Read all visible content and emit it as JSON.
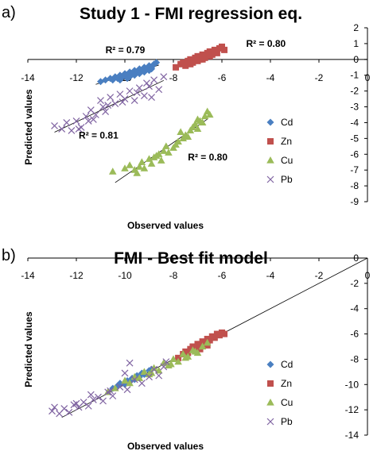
{
  "chart_data": [
    {
      "type": "scatter",
      "panel": "a)",
      "title": "Study 1 - FMI regression eq.",
      "xlabel": "Observed values",
      "ylabel": "Predicted values",
      "xlim": [
        -14,
        0
      ],
      "ylim": [
        -9,
        2
      ],
      "xticks": [
        -14,
        -12,
        -10,
        -8,
        -6,
        -4,
        -2,
        0
      ],
      "yticks": [
        2,
        1,
        0,
        -1,
        -2,
        -3,
        -4,
        -5,
        -6,
        -7,
        -8,
        -9
      ],
      "grid": false,
      "legend": "right",
      "series": [
        {
          "name": "Cd",
          "marker": "diamond",
          "color": "#4a7fc1",
          "x": [
            -11.0,
            -10.8,
            -10.6,
            -10.5,
            -10.4,
            -10.3,
            -10.2,
            -10.1,
            -10.0,
            -9.9,
            -9.8,
            -9.7,
            -9.6,
            -9.5,
            -9.4,
            -9.3,
            -9.2,
            -9.1,
            -9.0,
            -8.9,
            -8.8,
            -8.7,
            -9.9,
            -9.6,
            -9.4,
            -9.2,
            -9.0,
            -8.9,
            -10.2,
            -9.8
          ],
          "y": [
            -1.4,
            -1.3,
            -1.2,
            -1.3,
            -1.1,
            -1.2,
            -1.0,
            -1.1,
            -0.9,
            -1.0,
            -0.8,
            -0.9,
            -0.7,
            -0.8,
            -0.6,
            -0.7,
            -0.5,
            -0.6,
            -0.4,
            -0.5,
            -0.3,
            -0.2,
            -1.2,
            -1.0,
            -0.9,
            -0.8,
            -0.7,
            -0.6,
            -1.3,
            -1.1
          ]
        },
        {
          "name": "Zn",
          "marker": "square",
          "color": "#c0504d",
          "x": [
            -7.9,
            -7.7,
            -7.6,
            -7.5,
            -7.4,
            -7.3,
            -7.2,
            -7.1,
            -7.0,
            -6.9,
            -6.8,
            -6.7,
            -6.6,
            -6.5,
            -6.4,
            -6.3,
            -6.2,
            -6.1,
            -6.0,
            -5.9,
            -7.3,
            -7.0,
            -6.8,
            -6.5,
            -6.3
          ],
          "y": [
            -0.5,
            -0.3,
            -0.2,
            -0.4,
            -0.1,
            0.0,
            -0.2,
            0.1,
            0.2,
            0.0,
            0.3,
            0.1,
            0.4,
            0.5,
            0.3,
            0.6,
            0.4,
            0.7,
            0.8,
            0.6,
            -0.3,
            -0.1,
            0.0,
            0.2,
            0.5
          ]
        },
        {
          "name": "Cu",
          "marker": "triangle",
          "color": "#9bbb59",
          "x": [
            -10.5,
            -10.0,
            -9.8,
            -9.6,
            -9.4,
            -9.3,
            -9.2,
            -9.0,
            -8.9,
            -8.8,
            -8.6,
            -8.5,
            -8.4,
            -8.2,
            -8.0,
            -7.9,
            -7.8,
            -7.6,
            -7.5,
            -7.4,
            -7.3,
            -7.2,
            -7.1,
            -7.0,
            -6.9,
            -6.8,
            -6.7,
            -6.6,
            -6.5,
            -9.5,
            -8.7,
            -8.3,
            -7.7,
            -7.0
          ],
          "y": [
            -7.1,
            -6.9,
            -6.7,
            -7.0,
            -6.8,
            -6.5,
            -6.9,
            -6.3,
            -6.6,
            -6.2,
            -6.0,
            -6.4,
            -5.8,
            -5.9,
            -5.6,
            -5.4,
            -5.2,
            -5.0,
            -4.8,
            -4.9,
            -4.5,
            -4.3,
            -4.1,
            -4.4,
            -3.9,
            -4.0,
            -3.6,
            -3.3,
            -3.5,
            -7.2,
            -6.1,
            -5.5,
            -4.6,
            -3.8
          ]
        },
        {
          "name": "Pb",
          "marker": "x",
          "color": "#8064a2",
          "x": [
            -12.9,
            -12.6,
            -12.4,
            -12.2,
            -12.0,
            -11.8,
            -11.6,
            -11.5,
            -11.4,
            -11.2,
            -11.0,
            -10.9,
            -10.8,
            -10.6,
            -10.4,
            -10.2,
            -10.0,
            -9.8,
            -9.6,
            -9.4,
            -9.2,
            -9.0,
            -8.8,
            -8.6,
            -8.4,
            -11.9,
            -11.3,
            -10.7,
            -10.1,
            -9.5,
            -9.1,
            -8.9
          ],
          "y": [
            -4.2,
            -4.4,
            -4.0,
            -4.5,
            -3.9,
            -4.3,
            -3.6,
            -3.9,
            -3.2,
            -3.5,
            -2.6,
            -3.0,
            -3.3,
            -2.4,
            -2.8,
            -2.2,
            -2.5,
            -2.0,
            -2.6,
            -1.8,
            -2.3,
            -1.7,
            -1.3,
            -1.9,
            -1.1,
            -4.4,
            -3.8,
            -2.9,
            -2.7,
            -2.1,
            -1.5,
            -2.4
          ]
        }
      ],
      "annotations": [
        {
          "text": "R² = 0.79",
          "x": -10.8,
          "y": 0.4
        },
        {
          "text": "R² = 0.80",
          "x": -5.0,
          "y": 0.8
        },
        {
          "text": "R² = 0.81",
          "x": -11.9,
          "y": -5.0
        },
        {
          "text": "R² = 0.80",
          "x": -7.4,
          "y": -6.4
        }
      ]
    },
    {
      "type": "scatter",
      "panel": "b)",
      "title": "FMI - Best fit model",
      "xlabel": "Observed values",
      "ylabel": "Predicted values",
      "xlim": [
        -14,
        0
      ],
      "ylim": [
        -14,
        0
      ],
      "xticks": [
        -14,
        -12,
        -10,
        -8,
        -6,
        -4,
        -2,
        0
      ],
      "yticks": [
        0,
        -2,
        -4,
        -6,
        -8,
        -10,
        -12,
        -14
      ],
      "grid": false,
      "legend": "right",
      "series": [
        {
          "name": "Cd",
          "marker": "diamond",
          "color": "#4a7fc1",
          "x": [
            -10.5,
            -10.3,
            -10.2,
            -10.0,
            -9.9,
            -9.8,
            -9.7,
            -9.6,
            -9.5,
            -9.4,
            -9.3,
            -9.2,
            -9.0,
            -8.9
          ],
          "y": [
            -10.3,
            -10.1,
            -9.9,
            -10.0,
            -9.7,
            -9.8,
            -9.5,
            -9.6,
            -9.3,
            -9.4,
            -9.1,
            -9.2,
            -8.9,
            -8.8
          ]
        },
        {
          "name": "Zn",
          "marker": "square",
          "color": "#c0504d",
          "x": [
            -7.8,
            -7.6,
            -7.5,
            -7.4,
            -7.3,
            -7.2,
            -7.1,
            -7.0,
            -6.9,
            -6.8,
            -6.7,
            -6.6,
            -6.5,
            -6.4,
            -6.3,
            -6.2,
            -6.1,
            -6.0,
            -5.9,
            -6.9,
            -6.6
          ],
          "y": [
            -7.9,
            -7.6,
            -7.4,
            -7.5,
            -7.2,
            -7.0,
            -7.1,
            -6.8,
            -6.9,
            -6.6,
            -6.7,
            -6.4,
            -6.5,
            -6.2,
            -6.3,
            -6.0,
            -6.1,
            -5.9,
            -6.0,
            -7.2,
            -6.9
          ]
        },
        {
          "name": "Cu",
          "marker": "triangle",
          "color": "#9bbb59",
          "x": [
            -10.7,
            -10.4,
            -10.0,
            -9.8,
            -9.6,
            -9.4,
            -9.2,
            -9.0,
            -8.8,
            -8.6,
            -8.4,
            -8.2,
            -8.0,
            -7.8,
            -7.6,
            -7.4,
            -7.2,
            -7.0,
            -6.8,
            -6.6,
            -8.9,
            -8.1,
            -7.5,
            -7.1
          ],
          "y": [
            -10.6,
            -10.3,
            -9.7,
            -9.9,
            -9.4,
            -9.5,
            -9.0,
            -9.2,
            -8.7,
            -8.9,
            -8.3,
            -8.5,
            -8.0,
            -8.2,
            -7.6,
            -7.8,
            -7.3,
            -7.5,
            -7.0,
            -6.7,
            -9.1,
            -8.4,
            -7.9,
            -7.4
          ]
        },
        {
          "name": "Pb",
          "marker": "x",
          "color": "#8064a2",
          "x": [
            -13.0,
            -12.7,
            -12.5,
            -12.3,
            -12.1,
            -11.9,
            -11.7,
            -11.5,
            -11.3,
            -11.1,
            -10.9,
            -10.7,
            -10.5,
            -10.2,
            -9.9,
            -9.6,
            -9.3,
            -9.0,
            -8.8,
            -8.6,
            -8.4,
            -8.3,
            -12.9,
            -12.0,
            -11.4,
            -10.6,
            -10.0,
            -9.8
          ],
          "y": [
            -12.1,
            -12.3,
            -11.9,
            -12.2,
            -11.6,
            -11.8,
            -11.4,
            -11.7,
            -11.2,
            -11.0,
            -11.3,
            -10.6,
            -10.9,
            -10.2,
            -10.4,
            -9.6,
            -9.9,
            -9.4,
            -8.8,
            -9.3,
            -8.6,
            -8.2,
            -11.8,
            -11.5,
            -10.8,
            -10.5,
            -9.1,
            -8.3
          ]
        }
      ],
      "annotations": []
    }
  ]
}
